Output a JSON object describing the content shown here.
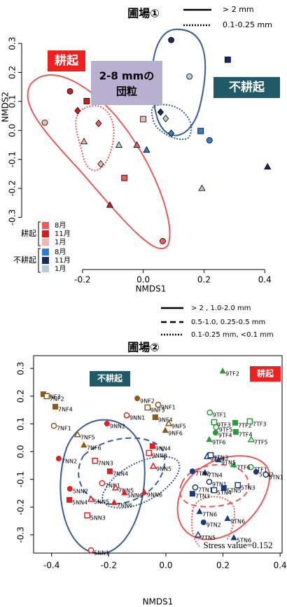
{
  "chart_data": [
    {
      "type": "scatter",
      "title": "圃場①",
      "x_label": "NMDS1",
      "y_label": "NMDS2",
      "xlim": [
        -0.4,
        0.45
      ],
      "ylim": [
        -0.48,
        0.34
      ],
      "xticks": [
        -0.2,
        {
          "value": 0,
          "label": "0.0"
        },
        0.2,
        0.4
      ],
      "yticks": [
        -0.3,
        -0.2,
        -0.1,
        {
          "value": 0,
          "label": "0.0"
        },
        0.1,
        0.2,
        0.3
      ],
      "grid": false,
      "legend": [
        {
          "style": "solid",
          "label": "> 2 mm"
        },
        {
          "style": "dotted",
          "label": "0.1-0.25 mm"
        }
      ],
      "legend_groups": [
        "耕起",
        "不耕起"
      ],
      "annotations": [
        {
          "text": "耕起",
          "color": "#ee2020"
        },
        {
          "text": "2-8 mmの団粒",
          "color": "#b8b0d0"
        },
        {
          "text": "不耕起",
          "color": "#1f5a66"
        }
      ],
      "series": [
        {
          "name": "8月",
          "group": "耕起",
          "color": "#f05a5a",
          "markers": [
            "square",
            "triangle",
            "circle",
            "diamond"
          ],
          "x": [
            -0.062,
            -0.021,
            0.064,
            -0.147
          ],
          "y": [
            -0.164,
            -0.051,
            -0.382,
            0.024
          ]
        },
        {
          "name": "11月",
          "group": "耕起",
          "color": "#d41c1c",
          "markers": [
            "circle",
            "square",
            "diamond",
            "triangle"
          ],
          "x": [
            -0.241,
            -0.186,
            -0.216,
            -0.11
          ],
          "y": [
            0.135,
            0.101,
            0.068,
            -0.258
          ]
        },
        {
          "name": "1月",
          "group": "耕起",
          "color": "#f4b6b0",
          "markers": [
            "circle",
            "square",
            "diamond",
            "triangle"
          ],
          "x": [
            -0.324,
            0.0,
            -0.14,
            -0.195
          ],
          "y": [
            0.027,
            0.039,
            -0.116,
            -0.039
          ]
        },
        {
          "name": "8月",
          "group": "不耕起",
          "color": "#2a7fd4",
          "markers": [
            "circle",
            "square",
            "diamond",
            "triangle"
          ],
          "x": [
            0.218,
            0.189,
            0.092,
            0.011
          ],
          "y": [
            -0.034,
            -0.002,
            -0.01,
            -0.068
          ]
        },
        {
          "name": "11月",
          "group": "不耕起",
          "color": "#1a2a5e",
          "markers": [
            "circle",
            "square",
            "diamond",
            "triangle"
          ],
          "x": [
            0.092,
            0.278,
            0.057,
            0.409
          ],
          "y": [
            0.312,
            0.244,
            0.063,
            -0.126
          ]
        },
        {
          "name": "1月",
          "group": "不耕起",
          "color": "#b4cdd8",
          "markers": [
            "circle",
            "diamond",
            "triangle",
            "triangle"
          ],
          "x": [
            0.152,
            0.074,
            0.193,
            -0.08
          ],
          "y": [
            0.186,
            0.041,
            -0.2,
            -0.051
          ]
        }
      ]
    },
    {
      "type": "scatter",
      "title": "圃場②",
      "x_label": "NMDS1",
      "xlim": [
        -0.463,
        0.407
      ],
      "ylim": [
        -0.366,
        0.346
      ],
      "xticks": [
        -0.4,
        -0.2,
        {
          "value": 0,
          "label": "0.0"
        },
        0.2,
        0.4
      ],
      "yticks": [
        -0.3,
        -0.2,
        -0.1,
        {
          "value": 0,
          "label": "0.0"
        },
        0.1,
        0.2,
        0.3
      ],
      "grid": false,
      "legend": [
        {
          "style": "solid",
          "label": "> 2 , 1.0-2.0 mm"
        },
        {
          "style": "dashed",
          "label": "0.5-1.0, 0.25-0.5 mm"
        },
        {
          "style": "dotted",
          "label": "0.1-0.25 mm, <0.1 mm"
        }
      ],
      "annotations": [
        {
          "text": "不耕起",
          "color": "#1f5a66"
        },
        {
          "text": "耕起",
          "color": "#ee2020"
        },
        {
          "text": "Stress value=0.152",
          "color": "#ffffff"
        }
      ],
      "series": [
        {
          "color": "#8b5a1a",
          "labels": [
            "7NF3",
            "7NF2",
            "7NF4",
            "7NF1",
            "7NF5",
            "7NF6",
            "9NF2",
            "9NF1",
            "9NF3",
            "9NF4",
            "9NF5",
            "9NF6"
          ],
          "markers": [
            "square",
            "open-square",
            "square",
            "open-circle",
            "open-triangle",
            "triangle",
            "circle",
            "open-circle",
            "open-square",
            "square",
            "open-triangle",
            "triangle"
          ],
          "x": [
            -0.429,
            -0.417,
            -0.387,
            -0.392,
            -0.309,
            -0.287,
            -0.1,
            -0.027,
            -0.064,
            -0.037,
            0.01,
            -0.002
          ],
          "y": [
            0.207,
            0.2,
            0.162,
            0.093,
            0.061,
            0.023,
            0.192,
            0.169,
            0.159,
            0.124,
            0.101,
            0.076
          ]
        },
        {
          "color": "#e02020",
          "labels": [
            "9NN1",
            "9NN2",
            "7NN2",
            "7NN3",
            "9NN4",
            "9NN3",
            "9NN5",
            "7NN4",
            "7NN1",
            "7NN5",
            "5NN6",
            "9NN6",
            "7NN6",
            "5NN2",
            "5NN4",
            "5NN5",
            "5NN3",
            "5NN1"
          ],
          "markers": [
            "open-circle",
            "circle",
            "circle",
            "open-square",
            "square",
            "open-square",
            "open-triangle",
            "square",
            "open-circle",
            "open-triangle",
            "triangle",
            "triangle",
            "triangle",
            "circle",
            "square",
            "open-triangle",
            "open-square",
            "open-circle"
          ],
          "x": [
            -0.137,
            -0.206,
            -0.375,
            -0.248,
            -0.047,
            -0.059,
            -0.044,
            -0.196,
            -0.223,
            -0.176,
            -0.145,
            -0.076,
            -0.181,
            -0.336,
            -0.338,
            -0.262,
            -0.275,
            -0.262
          ],
          "y": [
            0.131,
            0.101,
            -0.025,
            -0.033,
            0.02,
            -0.005,
            -0.053,
            -0.071,
            -0.114,
            -0.131,
            -0.149,
            -0.146,
            -0.184,
            -0.134,
            -0.174,
            -0.172,
            -0.23,
            -0.356
          ]
        },
        {
          "color": "#2a9a3a",
          "labels": [
            "9TF2",
            "9TF1",
            "9TF3",
            "9TF5",
            "9TF4",
            "9TF6",
            "7TF2",
            "7TF3",
            "7TF4",
            "7TF5",
            "7TF1",
            "7TF6"
          ],
          "markers": [
            "triangle",
            "open-circle",
            "open-square",
            "open-circle",
            "circle",
            "triangle",
            "square",
            "open-square",
            "square",
            "open-triangle",
            "open-circle",
            "triangle"
          ],
          "x": [
            0.199,
            0.154,
            0.169,
            0.176,
            0.174,
            0.152,
            0.243,
            0.294,
            0.245,
            0.299,
            0.297,
            0.238
          ],
          "y": [
            0.29,
            0.141,
            0.106,
            0.088,
            0.068,
            0.043,
            0.104,
            0.109,
            0.071,
            0.043,
            -0.056,
            -0.048
          ]
        },
        {
          "color": "#1a3a7a",
          "labels": [
            "5TN2",
            "5TN1",
            "9TN4",
            "9TN3",
            "9TN5",
            "7TN4",
            "7TN2",
            "9TN1",
            "5TN5",
            "5TN3",
            "5TN4",
            "7TN1",
            "7TN3",
            "7TN6",
            "9TN2",
            "9TN6",
            "7TN5",
            "5TN6"
          ],
          "markers": [
            "circle",
            "open-circle",
            "open-triangle",
            "open-square",
            "triangle",
            "triangle",
            "circle",
            "open-circle",
            "square",
            "open-square",
            "open-square",
            "open-circle",
            "square",
            "triangle",
            "circle",
            "triangle",
            "open-triangle",
            "triangle"
          ],
          "x": [
            0.316,
            0.35,
            0.145,
            0.157,
            0.184,
            0.137,
            0.093,
            0.152,
            0.203,
            0.252,
            0.169,
            0.103,
            0.093,
            0.118,
            0.132,
            0.216,
            0.113,
            0.238
          ],
          "y": [
            -0.073,
            -0.083,
            -0.018,
            -0.013,
            -0.03,
            -0.076,
            -0.071,
            -0.109,
            -0.131,
            -0.121,
            -0.139,
            -0.129,
            -0.152,
            -0.217,
            -0.255,
            -0.242,
            -0.301,
            -0.311
          ]
        }
      ]
    }
  ]
}
